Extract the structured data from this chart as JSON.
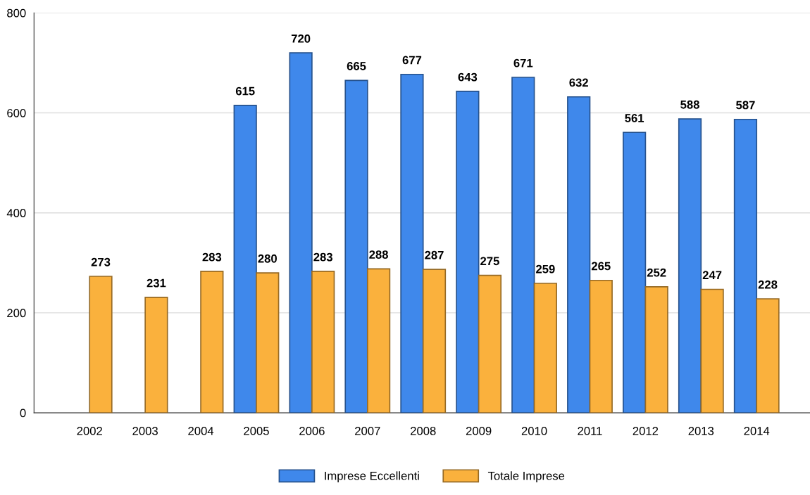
{
  "chart_data": {
    "type": "bar",
    "categories": [
      "2002",
      "2003",
      "2004",
      "2005",
      "2006",
      "2007",
      "2008",
      "2009",
      "2010",
      "2011",
      "2012",
      "2013",
      "2014"
    ],
    "series": [
      {
        "name": "Imprese Eccellenti",
        "color": "#3f88eb",
        "values": [
          null,
          null,
          null,
          615,
          720,
          665,
          677,
          643,
          671,
          632,
          561,
          588,
          587
        ]
      },
      {
        "name": "Totale Imprese",
        "color": "#fab13d",
        "values": [
          273,
          231,
          283,
          280,
          283,
          288,
          287,
          275,
          259,
          265,
          252,
          247,
          228
        ]
      }
    ],
    "ylim": [
      0,
      800
    ],
    "yticks": [
      0,
      200,
      400,
      600,
      800
    ],
    "grid": "y",
    "legend": "bottom",
    "data_labels": true
  }
}
